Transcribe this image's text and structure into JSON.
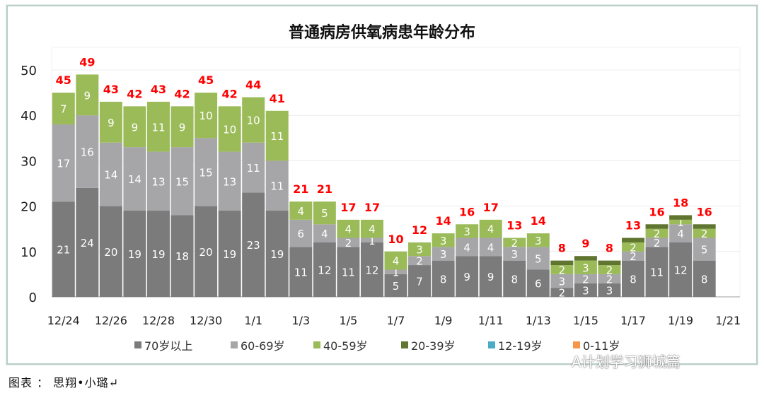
{
  "chart_data": {
    "type": "bar",
    "stacked": true,
    "title": "普通病房供氧病患年龄分布",
    "xlabel": "",
    "ylabel": "",
    "ylim": [
      0,
      55
    ],
    "yticks": [
      0,
      10,
      20,
      30,
      40,
      50
    ],
    "grid": true,
    "legend_position": "bottom",
    "categories": [
      "12/24",
      "12/25",
      "12/26",
      "12/27",
      "12/28",
      "12/29",
      "12/30",
      "12/31",
      "1/1",
      "1/2",
      "1/3",
      "1/4",
      "1/5",
      "1/6",
      "1/7",
      "1/8",
      "1/9",
      "1/10",
      "1/11",
      "1/12",
      "1/13",
      "1/14",
      "1/15",
      "1/16",
      "1/17",
      "1/18",
      "1/19",
      "1/20",
      "1/21"
    ],
    "xtick_labels": [
      "12/24",
      "12/26",
      "12/28",
      "12/30",
      "1/1",
      "1/3",
      "1/5",
      "1/7",
      "1/9",
      "1/11",
      "1/13",
      "1/15",
      "1/17",
      "1/19",
      "1/21"
    ],
    "series": [
      {
        "name": "70岁以上",
        "color": "#7b7b7c",
        "values": [
          21,
          24,
          20,
          19,
          19,
          18,
          20,
          19,
          23,
          19,
          11,
          12,
          11,
          12,
          5,
          7,
          8,
          9,
          9,
          8,
          6,
          2,
          3,
          3,
          8,
          11,
          12,
          8,
          null
        ]
      },
      {
        "name": "60-69岁",
        "color": "#a6a6a8",
        "values": [
          17,
          16,
          14,
          14,
          13,
          15,
          15,
          13,
          11,
          11,
          6,
          4,
          2,
          1,
          1,
          2,
          3,
          4,
          4,
          3,
          5,
          3,
          2,
          2,
          2,
          2,
          4,
          5,
          null
        ]
      },
      {
        "name": "40-59岁",
        "color": "#9bbb59",
        "values": [
          7,
          9,
          9,
          9,
          11,
          9,
          10,
          10,
          10,
          11,
          4,
          5,
          4,
          4,
          4,
          3,
          3,
          3,
          4,
          2,
          3,
          2,
          3,
          2,
          2,
          2,
          1,
          2,
          null
        ]
      },
      {
        "name": "20-39岁",
        "color": "#5f7530",
        "values": [
          0,
          0,
          0,
          0,
          0,
          0,
          0,
          0,
          0,
          0,
          0,
          0,
          0,
          0,
          0,
          0,
          0,
          0,
          0,
          0,
          0,
          1,
          1,
          1,
          1,
          1,
          1,
          1,
          null
        ]
      },
      {
        "name": "12-19岁",
        "color": "#4bacc6",
        "values": [
          0,
          0,
          0,
          0,
          0,
          0,
          0,
          0,
          0,
          0,
          0,
          0,
          0,
          0,
          0,
          0,
          0,
          0,
          0,
          0,
          0,
          0,
          0,
          0,
          0,
          0,
          0,
          0,
          null
        ]
      },
      {
        "name": "0-11岁",
        "color": "#f79646",
        "values": [
          0,
          0,
          0,
          0,
          0,
          0,
          0,
          0,
          0,
          0,
          0,
          0,
          0,
          0,
          0,
          0,
          0,
          0,
          0,
          0,
          0,
          0,
          0,
          0,
          0,
          0,
          0,
          0,
          null
        ]
      }
    ],
    "totals": [
      45,
      49,
      43,
      42,
      43,
      42,
      45,
      42,
      44,
      41,
      21,
      21,
      17,
      17,
      10,
      12,
      14,
      16,
      17,
      13,
      14,
      8,
      9,
      8,
      13,
      16,
      18,
      16,
      null
    ],
    "total_label_color": "#ff0000"
  },
  "caption": "图表 ： 思翔•小璐↵",
  "watermark": "A计划学习狮城篇"
}
